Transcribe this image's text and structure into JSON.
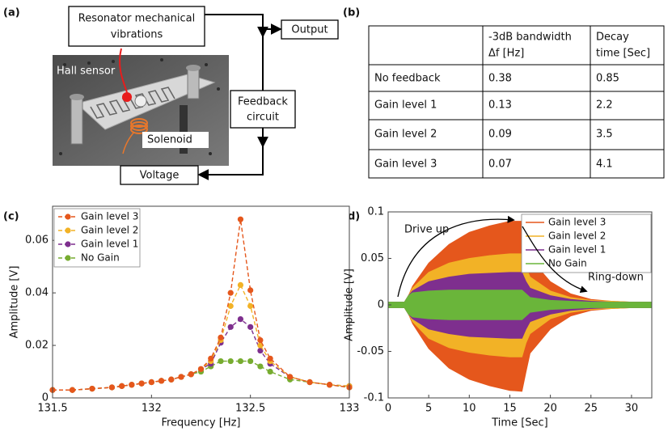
{
  "panel_labels": [
    "(a)",
    "(b)",
    "(c)",
    "(d)"
  ],
  "diagram": {
    "nodes": [
      {
        "lines": [
          "Resonator mechanical",
          "vibrations"
        ]
      },
      {
        "lines": [
          "Output"
        ]
      },
      {
        "lines": [
          "Feedback",
          "circuit"
        ]
      },
      {
        "lines": [
          "Voltage"
        ]
      }
    ],
    "photo_labels": [
      "Hall sensor",
      "Solenoid"
    ]
  },
  "table": {
    "header": [
      [
        "-3dB bandwidth",
        "Δf [Hz]"
      ],
      [
        "Decay",
        "time [Sec]"
      ]
    ],
    "rows": [
      [
        "No feedback",
        0.38,
        0.85
      ],
      [
        "Gain level 1",
        0.13,
        2.2
      ],
      [
        "Gain level 2",
        0.09,
        3.5
      ],
      [
        "Gain level 3",
        0.07,
        4.1
      ]
    ]
  },
  "chart_data": [
    {
      "type": "line",
      "x_label": "Frequency [Hz]",
      "y_label": "Amplitude [V]",
      "x": [
        131.5,
        131.6,
        131.7,
        131.8,
        131.85,
        131.9,
        131.95,
        132.0,
        132.05,
        132.1,
        132.15,
        132.2,
        132.25,
        132.3,
        132.35,
        132.4,
        132.45,
        132.5,
        132.55,
        132.6,
        132.7,
        132.8,
        132.9,
        133
      ],
      "xlim": [
        131.5,
        133
      ],
      "xticks": [
        131.5,
        132,
        132.5,
        133
      ],
      "ylim": [
        0,
        0.073
      ],
      "yticks": [
        0,
        0.02,
        0.04,
        0.06
      ],
      "legend": "upper left",
      "series": [
        {
          "name": "Gain level 3",
          "color": "#e5571c",
          "values": [
            0.003,
            0.003,
            0.0035,
            0.004,
            0.0045,
            0.005,
            0.0055,
            0.006,
            0.0065,
            0.007,
            0.008,
            0.009,
            0.011,
            0.015,
            0.023,
            0.04,
            0.068,
            0.041,
            0.022,
            0.015,
            0.008,
            0.006,
            0.005,
            0.004
          ]
        },
        {
          "name": "Gain level 2",
          "color": "#f2b226",
          "values": [
            0.003,
            0.003,
            0.0035,
            0.004,
            0.0045,
            0.005,
            0.0055,
            0.006,
            0.0065,
            0.007,
            0.008,
            0.009,
            0.011,
            0.014,
            0.022,
            0.035,
            0.043,
            0.035,
            0.02,
            0.014,
            0.008,
            0.006,
            0.005,
            0.0045
          ]
        },
        {
          "name": "Gain level 1",
          "color": "#7e2f8e",
          "values": [
            0.003,
            0.003,
            0.0035,
            0.004,
            0.0045,
            0.005,
            0.0055,
            0.006,
            0.0065,
            0.007,
            0.008,
            0.009,
            0.011,
            0.013,
            0.021,
            0.027,
            0.03,
            0.027,
            0.018,
            0.013,
            0.008,
            0.006,
            0.005,
            0.0045
          ]
        },
        {
          "name": "No Gain",
          "color": "#77ac30",
          "values": [
            0.003,
            0.003,
            0.0035,
            0.004,
            0.0045,
            0.005,
            0.0055,
            0.006,
            0.0065,
            0.007,
            0.008,
            0.009,
            0.01,
            0.012,
            0.014,
            0.014,
            0.014,
            0.014,
            0.012,
            0.01,
            0.007,
            0.006,
            0.005,
            0.004
          ]
        }
      ]
    },
    {
      "type": "area",
      "x_label": "Time [Sec]",
      "y_label": "Amplitude [V]",
      "x": [
        0,
        2,
        2.5,
        3,
        5,
        7.5,
        10,
        12.5,
        15,
        16.5,
        17,
        17.5,
        20,
        22.5,
        25,
        27.5,
        30,
        32.5
      ],
      "xlim": [
        0,
        32.5
      ],
      "xticks": [
        0,
        5,
        10,
        15,
        20,
        25,
        30
      ],
      "ylim": [
        -0.1,
        0.1
      ],
      "yticks": [
        -0.1,
        -0.05,
        0,
        0.05,
        0.1
      ],
      "legend": "upper right",
      "annotations": [
        "Drive up",
        "Ring-down"
      ],
      "series": [
        {
          "name": "Gain level 3",
          "color": "#e5571c",
          "values": [
            0.003,
            0.003,
            0.01,
            0.02,
            0.045,
            0.065,
            0.078,
            0.085,
            0.09,
            0.09,
            0.07,
            0.05,
            0.025,
            0.012,
            0.006,
            0.004,
            0.003,
            0.003
          ],
          "lower_values": [
            -0.003,
            -0.003,
            -0.01,
            -0.02,
            -0.047,
            -0.068,
            -0.08,
            -0.087,
            -0.092,
            -0.093,
            -0.072,
            -0.052,
            -0.026,
            -0.012,
            -0.006,
            -0.004,
            -0.003,
            -0.003
          ]
        },
        {
          "name": "Gain level 2",
          "color": "#f2b226",
          "values": [
            0.003,
            0.003,
            0.01,
            0.018,
            0.035,
            0.045,
            0.05,
            0.053,
            0.055,
            0.055,
            0.04,
            0.03,
            0.015,
            0.008,
            0.005,
            0.004,
            0.003,
            0.003
          ],
          "lower_values": [
            -0.003,
            -0.003,
            -0.01,
            -0.018,
            -0.036,
            -0.046,
            -0.051,
            -0.054,
            -0.056,
            -0.056,
            -0.041,
            -0.031,
            -0.015,
            -0.008,
            -0.005,
            -0.004,
            -0.003,
            -0.003
          ]
        },
        {
          "name": "Gain level 1",
          "color": "#7e2f8e",
          "values": [
            0.003,
            0.003,
            0.01,
            0.015,
            0.025,
            0.03,
            0.033,
            0.034,
            0.035,
            0.035,
            0.025,
            0.018,
            0.01,
            0.006,
            0.004,
            0.003,
            0.003,
            0.003
          ],
          "lower_values": [
            -0.003,
            -0.003,
            -0.01,
            -0.015,
            -0.026,
            -0.031,
            -0.034,
            -0.035,
            -0.036,
            -0.036,
            -0.026,
            -0.018,
            -0.01,
            -0.006,
            -0.004,
            -0.003,
            -0.003,
            -0.003
          ]
        },
        {
          "name": "No Gain",
          "color": "#6ab53a",
          "values": [
            0.003,
            0.003,
            0.01,
            0.013,
            0.015,
            0.016,
            0.016,
            0.016,
            0.016,
            0.016,
            0.012,
            0.008,
            0.005,
            0.004,
            0.003,
            0.003,
            0.003,
            0.003
          ],
          "lower_values": [
            -0.003,
            -0.003,
            -0.01,
            -0.013,
            -0.015,
            -0.016,
            -0.016,
            -0.016,
            -0.016,
            -0.016,
            -0.012,
            -0.008,
            -0.005,
            -0.004,
            -0.003,
            -0.003,
            -0.003,
            -0.003
          ]
        }
      ]
    }
  ]
}
